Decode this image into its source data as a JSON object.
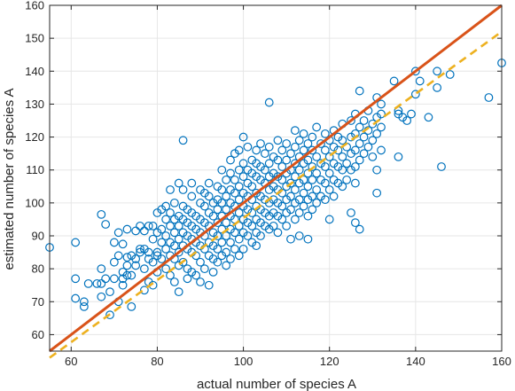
{
  "chart_data": {
    "type": "scatter",
    "title": "",
    "xlabel": "actual number of species A",
    "ylabel": "estimated number of species A",
    "xlim": [
      55,
      160
    ],
    "ylim": [
      55,
      160
    ],
    "xticks": [
      60,
      80,
      100,
      120,
      140,
      160
    ],
    "yticks": [
      60,
      70,
      80,
      90,
      100,
      110,
      120,
      130,
      140,
      150,
      160
    ],
    "grid": true,
    "legend": "none",
    "colors": {
      "points": "#0072bd",
      "identity_line": "#d95319",
      "fit_line": "#edb120"
    },
    "lines": [
      {
        "style": "solid",
        "x": [
          55,
          160
        ],
        "y": [
          55,
          160
        ]
      },
      {
        "style": "dashed",
        "x": [
          55,
          160
        ],
        "y": [
          53,
          152
        ]
      }
    ],
    "points": [
      [
        55,
        86.5
      ],
      [
        61,
        88
      ],
      [
        61,
        77
      ],
      [
        61,
        71
      ],
      [
        63,
        70
      ],
      [
        63,
        68.5
      ],
      [
        64,
        75.5
      ],
      [
        66,
        75.5
      ],
      [
        67,
        96.5
      ],
      [
        67,
        75.5
      ],
      [
        67,
        80
      ],
      [
        67,
        71.5
      ],
      [
        68,
        93.5
      ],
      [
        68,
        77
      ],
      [
        69,
        66
      ],
      [
        69,
        73
      ],
      [
        70,
        77
      ],
      [
        70,
        82
      ],
      [
        70,
        88
      ],
      [
        71,
        84
      ],
      [
        71,
        91
      ],
      [
        71,
        70
      ],
      [
        72,
        79
      ],
      [
        72,
        77
      ],
      [
        72,
        87.5
      ],
      [
        72,
        75
      ],
      [
        73,
        92
      ],
      [
        73,
        78
      ],
      [
        73,
        81
      ],
      [
        73,
        83.5
      ],
      [
        74,
        78
      ],
      [
        74,
        84
      ],
      [
        74,
        68.5
      ],
      [
        75,
        83
      ],
      [
        75,
        91.5
      ],
      [
        75,
        81
      ],
      [
        76,
        86
      ],
      [
        76,
        93
      ],
      [
        76,
        85
      ],
      [
        77,
        80
      ],
      [
        77,
        86
      ],
      [
        77,
        91.5
      ],
      [
        77,
        73.5
      ],
      [
        78,
        83
      ],
      [
        78,
        93
      ],
      [
        78,
        85
      ],
      [
        78,
        76
      ],
      [
        79,
        93
      ],
      [
        79,
        89
      ],
      [
        79,
        82
      ],
      [
        79,
        75
      ],
      [
        80,
        97
      ],
      [
        80,
        91
      ],
      [
        80,
        85
      ],
      [
        80,
        84
      ],
      [
        80,
        79
      ],
      [
        81,
        98
      ],
      [
        81,
        92
      ],
      [
        81,
        88
      ],
      [
        81,
        83
      ],
      [
        82,
        99
      ],
      [
        82,
        95
      ],
      [
        82,
        90
      ],
      [
        82,
        86
      ],
      [
        82,
        80
      ],
      [
        83,
        104
      ],
      [
        83,
        97
      ],
      [
        83,
        93
      ],
      [
        83,
        88
      ],
      [
        83,
        84
      ],
      [
        83,
        78
      ],
      [
        84,
        100
      ],
      [
        84,
        95
      ],
      [
        84,
        91
      ],
      [
        84,
        87
      ],
      [
        84,
        83
      ],
      [
        84,
        76
      ],
      [
        85,
        106
      ],
      [
        85,
        96
      ],
      [
        85,
        93
      ],
      [
        85,
        89
      ],
      [
        85,
        85
      ],
      [
        85,
        81
      ],
      [
        85,
        73
      ],
      [
        86,
        119
      ],
      [
        86,
        104
      ],
      [
        86,
        99
      ],
      [
        86,
        95
      ],
      [
        86,
        91
      ],
      [
        86,
        87
      ],
      [
        86,
        82
      ],
      [
        87,
        98
      ],
      [
        87,
        94
      ],
      [
        87,
        90
      ],
      [
        87,
        86
      ],
      [
        87,
        80
      ],
      [
        87,
        77
      ],
      [
        88,
        106
      ],
      [
        88,
        102
      ],
      [
        88,
        97
      ],
      [
        88,
        93
      ],
      [
        88,
        89
      ],
      [
        88,
        85
      ],
      [
        88,
        79
      ],
      [
        89,
        96
      ],
      [
        89,
        92
      ],
      [
        89,
        88
      ],
      [
        89,
        84
      ],
      [
        89,
        78
      ],
      [
        90,
        104
      ],
      [
        90,
        100
      ],
      [
        90,
        95
      ],
      [
        90,
        91
      ],
      [
        90,
        87
      ],
      [
        90,
        82
      ],
      [
        90,
        76
      ],
      [
        91,
        103
      ],
      [
        91,
        99
      ],
      [
        91,
        94
      ],
      [
        91,
        90
      ],
      [
        91,
        86
      ],
      [
        91,
        80
      ],
      [
        92,
        106
      ],
      [
        92,
        102
      ],
      [
        92,
        97
      ],
      [
        92,
        93
      ],
      [
        92,
        88
      ],
      [
        92,
        84
      ],
      [
        92,
        75
      ],
      [
        93,
        100
      ],
      [
        93,
        96
      ],
      [
        93,
        91
      ],
      [
        93,
        87
      ],
      [
        93,
        83
      ],
      [
        93,
        79
      ],
      [
        94,
        105
      ],
      [
        94,
        101
      ],
      [
        94,
        98
      ],
      [
        94,
        94
      ],
      [
        94,
        90
      ],
      [
        94,
        86
      ],
      [
        94,
        82
      ],
      [
        95,
        110
      ],
      [
        95,
        104
      ],
      [
        95,
        100
      ],
      [
        95,
        96
      ],
      [
        95,
        92
      ],
      [
        95,
        88
      ],
      [
        95,
        84
      ],
      [
        96,
        107
      ],
      [
        96,
        102
      ],
      [
        96,
        98
      ],
      [
        96,
        94
      ],
      [
        96,
        90
      ],
      [
        96,
        85
      ],
      [
        96,
        81
      ],
      [
        97,
        113
      ],
      [
        97,
        109
      ],
      [
        97,
        104
      ],
      [
        97,
        100
      ],
      [
        97,
        96
      ],
      [
        97,
        92
      ],
      [
        97,
        88
      ],
      [
        97,
        83
      ],
      [
        98,
        115
      ],
      [
        98,
        107
      ],
      [
        98,
        103
      ],
      [
        98,
        99
      ],
      [
        98,
        95
      ],
      [
        98,
        91
      ],
      [
        98,
        86
      ],
      [
        99,
        116
      ],
      [
        99,
        110
      ],
      [
        99,
        105
      ],
      [
        99,
        101
      ],
      [
        99,
        97
      ],
      [
        99,
        93
      ],
      [
        99,
        89
      ],
      [
        99,
        84
      ],
      [
        100,
        120
      ],
      [
        100,
        112
      ],
      [
        100,
        108
      ],
      [
        100,
        103
      ],
      [
        100,
        99
      ],
      [
        100,
        95
      ],
      [
        100,
        91
      ],
      [
        100,
        86
      ],
      [
        101,
        117
      ],
      [
        101,
        110
      ],
      [
        101,
        106
      ],
      [
        101,
        102
      ],
      [
        101,
        98
      ],
      [
        101,
        94
      ],
      [
        101,
        90
      ],
      [
        102,
        113
      ],
      [
        102,
        109
      ],
      [
        102,
        105
      ],
      [
        102,
        101
      ],
      [
        102,
        97
      ],
      [
        102,
        93
      ],
      [
        102,
        88
      ],
      [
        103,
        116
      ],
      [
        103,
        112
      ],
      [
        103,
        108
      ],
      [
        103,
        103
      ],
      [
        103,
        99
      ],
      [
        103,
        95
      ],
      [
        103,
        91
      ],
      [
        103,
        87
      ],
      [
        104,
        118
      ],
      [
        104,
        111
      ],
      [
        104,
        107
      ],
      [
        104,
        102
      ],
      [
        104,
        98
      ],
      [
        104,
        94
      ],
      [
        104,
        90
      ],
      [
        105,
        115
      ],
      [
        105,
        110
      ],
      [
        105,
        106
      ],
      [
        105,
        101
      ],
      [
        105,
        97
      ],
      [
        105,
        93
      ],
      [
        106,
        130.5
      ],
      [
        106,
        117
      ],
      [
        106,
        112
      ],
      [
        106,
        108
      ],
      [
        106,
        104
      ],
      [
        106,
        100
      ],
      [
        106,
        96
      ],
      [
        106,
        92
      ],
      [
        107,
        114
      ],
      [
        107,
        109
      ],
      [
        107,
        105
      ],
      [
        107,
        101
      ],
      [
        107,
        97
      ],
      [
        107,
        93
      ],
      [
        108,
        119
      ],
      [
        108,
        113
      ],
      [
        108,
        108
      ],
      [
        108,
        104
      ],
      [
        108,
        100
      ],
      [
        108,
        96
      ],
      [
        108,
        91
      ],
      [
        109,
        116
      ],
      [
        109,
        111
      ],
      [
        109,
        107
      ],
      [
        109,
        103
      ],
      [
        109,
        99
      ],
      [
        109,
        95
      ],
      [
        110,
        118
      ],
      [
        110,
        113
      ],
      [
        110,
        109
      ],
      [
        110,
        105
      ],
      [
        110,
        101
      ],
      [
        110,
        97
      ],
      [
        110,
        93
      ],
      [
        111,
        115
      ],
      [
        111,
        110
      ],
      [
        111,
        106
      ],
      [
        111,
        102
      ],
      [
        111,
        98
      ],
      [
        111,
        89
      ],
      [
        112,
        122
      ],
      [
        112,
        117
      ],
      [
        112,
        112
      ],
      [
        112,
        108
      ],
      [
        112,
        104
      ],
      [
        112,
        100
      ],
      [
        112,
        95
      ],
      [
        113,
        119
      ],
      [
        113,
        114
      ],
      [
        113,
        110
      ],
      [
        113,
        106
      ],
      [
        113,
        101
      ],
      [
        113,
        97
      ],
      [
        113,
        90
      ],
      [
        114,
        121
      ],
      [
        114,
        116
      ],
      [
        114,
        112
      ],
      [
        114,
        107
      ],
      [
        114,
        103
      ],
      [
        114,
        99
      ],
      [
        115,
        118
      ],
      [
        115,
        113
      ],
      [
        115,
        109
      ],
      [
        115,
        105
      ],
      [
        115,
        101
      ],
      [
        115,
        96
      ],
      [
        115,
        89
      ],
      [
        116,
        120
      ],
      [
        116,
        116
      ],
      [
        116,
        111
      ],
      [
        116,
        107
      ],
      [
        116,
        102
      ],
      [
        116,
        98
      ],
      [
        117,
        123
      ],
      [
        117,
        114
      ],
      [
        117,
        109
      ],
      [
        117,
        104
      ],
      [
        117,
        100
      ],
      [
        118,
        118
      ],
      [
        118,
        112
      ],
      [
        118,
        107
      ],
      [
        118,
        102
      ],
      [
        119,
        121
      ],
      [
        119,
        116
      ],
      [
        119,
        111
      ],
      [
        119,
        106
      ],
      [
        119,
        101
      ],
      [
        120,
        119
      ],
      [
        120,
        114
      ],
      [
        120,
        109
      ],
      [
        120,
        104
      ],
      [
        120,
        95
      ],
      [
        121,
        122
      ],
      [
        121,
        117
      ],
      [
        121,
        112
      ],
      [
        121,
        107
      ],
      [
        121,
        102
      ],
      [
        122,
        120
      ],
      [
        122,
        116
      ],
      [
        122,
        111
      ],
      [
        122,
        106
      ],
      [
        123,
        124
      ],
      [
        123,
        119
      ],
      [
        123,
        114
      ],
      [
        123,
        110
      ],
      [
        123,
        105
      ],
      [
        124,
        117
      ],
      [
        124,
        112
      ],
      [
        124,
        107
      ],
      [
        125,
        125
      ],
      [
        125,
        120
      ],
      [
        125,
        115
      ],
      [
        125,
        110
      ],
      [
        125,
        97
      ],
      [
        126,
        127
      ],
      [
        126,
        121
      ],
      [
        126,
        116
      ],
      [
        126,
        111
      ],
      [
        126,
        106
      ],
      [
        126,
        94
      ],
      [
        127,
        134
      ],
      [
        127,
        123
      ],
      [
        127,
        118
      ],
      [
        127,
        113
      ],
      [
        127,
        92
      ],
      [
        128,
        125
      ],
      [
        128,
        120
      ],
      [
        128,
        115
      ],
      [
        129,
        128
      ],
      [
        129,
        122
      ],
      [
        129,
        117
      ],
      [
        130,
        124
      ],
      [
        130,
        119
      ],
      [
        130,
        114
      ],
      [
        131,
        132
      ],
      [
        131,
        126
      ],
      [
        131,
        121
      ],
      [
        131,
        110
      ],
      [
        131,
        103
      ],
      [
        132,
        127
      ],
      [
        132,
        123
      ],
      [
        132,
        116
      ],
      [
        132,
        130
      ],
      [
        135,
        137
      ],
      [
        136,
        128
      ],
      [
        136,
        127
      ],
      [
        136,
        114
      ],
      [
        137,
        126
      ],
      [
        138,
        125
      ],
      [
        139,
        127
      ],
      [
        140,
        140
      ],
      [
        140,
        133
      ],
      [
        141,
        137
      ],
      [
        143,
        126
      ],
      [
        145,
        140
      ],
      [
        145,
        135
      ],
      [
        146,
        111
      ],
      [
        148,
        139
      ],
      [
        157,
        132
      ],
      [
        160,
        142.5
      ]
    ]
  }
}
